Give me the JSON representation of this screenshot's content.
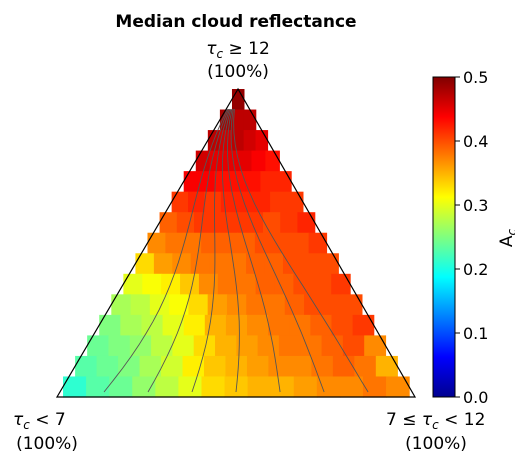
{
  "chart_data": {
    "type": "heatmap",
    "subtype": "ternary",
    "title": "Median cloud reflectance",
    "vertex_labels": {
      "top": {
        "symbol": "τ",
        "sub": "c",
        "rel": " ≥ 12",
        "pct": "(100%)"
      },
      "left": {
        "symbol": "τ",
        "sub": "c",
        "rel": " < 7",
        "pct": "(100%)"
      },
      "right": {
        "prefix": "7 ≤ ",
        "symbol": "τ",
        "sub": "c",
        "rel": " < 12",
        "pct": "(100%)"
      }
    },
    "colorbar": {
      "label": "A",
      "label_sub": "c",
      "colormap": "jet",
      "range": [
        0.0,
        0.5
      ],
      "ticks": [
        "0.0",
        "0.1",
        "0.2",
        "0.3",
        "0.4",
        "0.5"
      ]
    },
    "grid_rows_top_to_bottom": [
      [
        0.49
      ],
      [
        0.48,
        0.47,
        0.47
      ],
      [
        0.47,
        0.46,
        0.47,
        0.46,
        0.45
      ],
      [
        0.46,
        0.45,
        0.45,
        0.45,
        0.44,
        0.43
      ],
      [
        0.44,
        0.44,
        0.43,
        0.43,
        0.43,
        0.42,
        0.42
      ],
      [
        0.41,
        0.42,
        0.41,
        0.42,
        0.42,
        0.42,
        0.41,
        0.41
      ],
      [
        0.39,
        0.4,
        0.41,
        0.41,
        0.41,
        0.41,
        0.4,
        0.41,
        0.42
      ],
      [
        0.37,
        0.38,
        0.38,
        0.39,
        0.39,
        0.39,
        0.4,
        0.4,
        0.4,
        0.41
      ],
      [
        0.33,
        0.36,
        0.37,
        0.38,
        0.38,
        0.38,
        0.39,
        0.39,
        0.4,
        0.4,
        0.4
      ],
      [
        0.3,
        0.31,
        0.32,
        0.34,
        0.37,
        0.38,
        0.38,
        0.39,
        0.39,
        0.4,
        0.4,
        0.41
      ],
      [
        0.27,
        0.28,
        0.3,
        0.31,
        0.33,
        0.36,
        0.37,
        0.38,
        0.38,
        0.39,
        0.4,
        0.4,
        0.4
      ],
      [
        0.25,
        0.27,
        0.28,
        0.3,
        0.32,
        0.35,
        0.36,
        0.37,
        0.38,
        0.38,
        0.39,
        0.4,
        0.41
      ],
      [
        0.24,
        0.25,
        0.26,
        0.28,
        0.3,
        0.33,
        0.35,
        0.36,
        0.37,
        0.38,
        0.38,
        0.39,
        0.4,
        0.37
      ],
      [
        0.23,
        0.24,
        0.25,
        0.27,
        0.29,
        0.32,
        0.34,
        0.35,
        0.36,
        0.37,
        0.37,
        0.38,
        0.39,
        0.38,
        0.35
      ],
      [
        0.21,
        0.23,
        0.24,
        0.26,
        0.28,
        0.3,
        0.33,
        0.34,
        0.35,
        0.35,
        0.36,
        0.37,
        0.37,
        0.38,
        0.37
      ]
    ],
    "contour_count": 7,
    "grid": false
  }
}
